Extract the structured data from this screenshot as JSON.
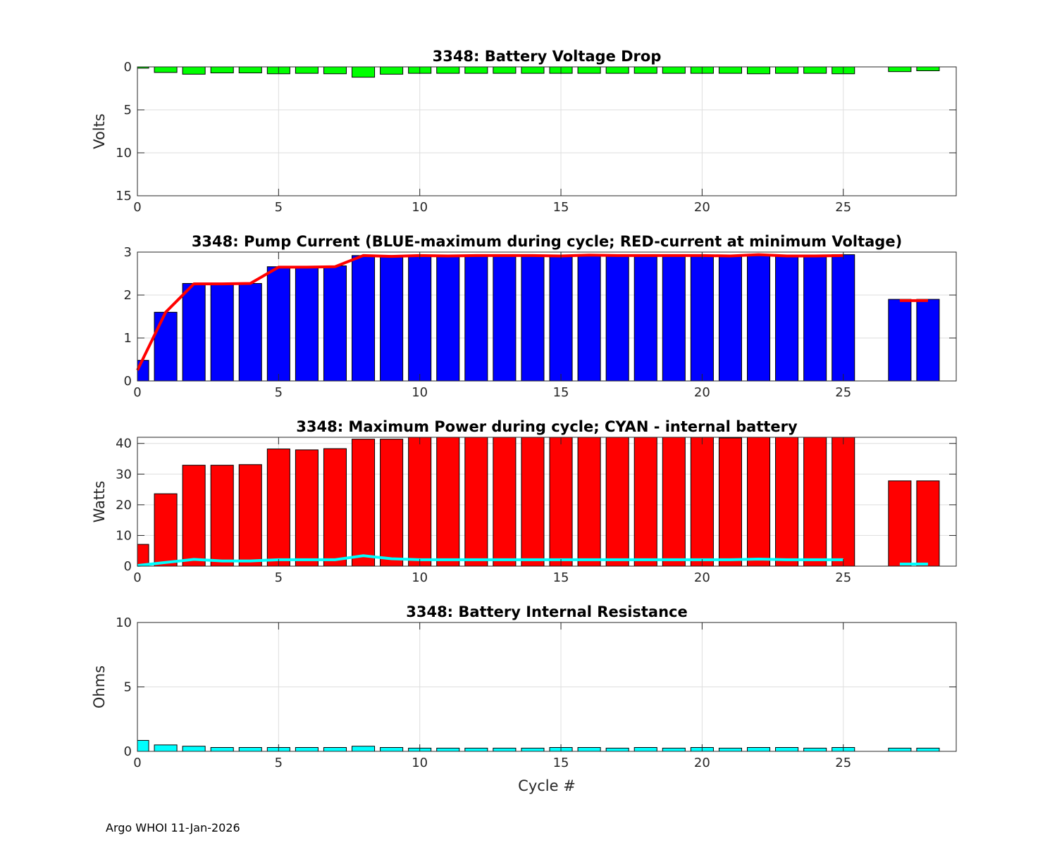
{
  "footer": "Argo WHOI 11-Jan-2026",
  "chart_data": [
    {
      "type": "bar",
      "title": "3348: Battery Voltage Drop",
      "xlabel": "",
      "ylabel": "Volts",
      "ylim": [
        0,
        15
      ],
      "y_reversed": true,
      "yticks": [
        0,
        5,
        10,
        15
      ],
      "xlim": [
        0,
        29
      ],
      "xticks": [
        0,
        5,
        10,
        15,
        20,
        25
      ],
      "grid": true,
      "colors": {
        "bars": "#00ff00"
      },
      "x": [
        0,
        1,
        2,
        3,
        4,
        5,
        6,
        7,
        8,
        9,
        10,
        11,
        12,
        13,
        14,
        15,
        16,
        17,
        18,
        19,
        20,
        21,
        22,
        23,
        24,
        25,
        27,
        28
      ],
      "values": [
        0.15,
        0.65,
        0.85,
        0.7,
        0.7,
        0.8,
        0.75,
        0.8,
        1.2,
        0.85,
        0.75,
        0.75,
        0.75,
        0.75,
        0.75,
        0.75,
        0.75,
        0.75,
        0.75,
        0.75,
        0.75,
        0.75,
        0.8,
        0.75,
        0.75,
        0.8,
        0.55,
        0.45
      ]
    },
    {
      "type": "bar",
      "title": "3348: Pump Current (BLUE-maximum during cycle; RED-current at minimum Voltage)",
      "xlabel": "",
      "ylabel": "",
      "ylim": [
        0,
        3
      ],
      "yticks": [
        0,
        1,
        2,
        3
      ],
      "xlim": [
        0,
        29
      ],
      "xticks": [
        0,
        5,
        10,
        15,
        20,
        25
      ],
      "grid": true,
      "colors": {
        "bars": "#0000ff",
        "line": "#ff0000"
      },
      "x": [
        0,
        1,
        2,
        3,
        4,
        5,
        6,
        7,
        8,
        9,
        10,
        11,
        12,
        13,
        14,
        15,
        16,
        17,
        18,
        19,
        20,
        21,
        22,
        23,
        24,
        25,
        27,
        28
      ],
      "values": [
        0.48,
        1.6,
        2.27,
        2.27,
        2.27,
        2.66,
        2.66,
        2.68,
        2.92,
        2.92,
        2.92,
        2.92,
        2.92,
        2.92,
        2.92,
        2.92,
        2.94,
        2.92,
        2.92,
        2.92,
        2.92,
        2.92,
        2.94,
        2.92,
        2.92,
        2.94,
        1.9,
        1.9
      ],
      "line_x": [
        0,
        1,
        2,
        3,
        4,
        5,
        6,
        7,
        8,
        9,
        10,
        11,
        12,
        13,
        14,
        15,
        16,
        17,
        18,
        19,
        20,
        21,
        22,
        23,
        24,
        25,
        27,
        28
      ],
      "line_values": [
        0.25,
        1.6,
        2.26,
        2.26,
        2.27,
        2.65,
        2.65,
        2.66,
        2.92,
        2.9,
        2.92,
        2.91,
        2.92,
        2.92,
        2.92,
        2.91,
        2.93,
        2.92,
        2.92,
        2.92,
        2.92,
        2.91,
        2.94,
        2.91,
        2.91,
        2.92,
        1.87,
        1.87
      ]
    },
    {
      "type": "bar",
      "title": "3348: Maximum Power during cycle; CYAN - internal battery",
      "xlabel": "",
      "ylabel": "Watts",
      "ylim": [
        0,
        42
      ],
      "yticks": [
        0,
        10,
        20,
        30,
        40
      ],
      "xlim": [
        0,
        29
      ],
      "xticks": [
        0,
        5,
        10,
        15,
        20,
        25
      ],
      "grid": true,
      "colors": {
        "bars": "#ff0000",
        "line": "#00ffff"
      },
      "x": [
        0,
        1,
        2,
        3,
        4,
        5,
        6,
        7,
        8,
        9,
        10,
        11,
        12,
        13,
        14,
        15,
        16,
        17,
        18,
        19,
        20,
        21,
        22,
        23,
        24,
        25,
        27,
        28
      ],
      "values": [
        7.1,
        23.6,
        32.9,
        32.9,
        33.1,
        38.2,
        37.9,
        38.3,
        41.4,
        41.4,
        42,
        42,
        42,
        42,
        42,
        42,
        42,
        42,
        42,
        42,
        42,
        41.8,
        42,
        42,
        42,
        42,
        27.8,
        27.8
      ],
      "line_x": [
        0,
        1,
        2,
        3,
        4,
        5,
        6,
        7,
        8,
        9,
        10,
        11,
        12,
        13,
        14,
        15,
        16,
        17,
        18,
        19,
        20,
        21,
        22,
        23,
        24,
        25,
        27,
        28
      ],
      "line_values": [
        0.2,
        1.2,
        2.2,
        1.7,
        1.7,
        2.1,
        2.1,
        2.1,
        3.4,
        2.4,
        2.1,
        2.1,
        2.1,
        2.1,
        2.1,
        2.1,
        2.1,
        2.1,
        2.1,
        2.1,
        2.1,
        2.1,
        2.3,
        2.1,
        2.1,
        2.1,
        0.7,
        0.7
      ]
    },
    {
      "type": "bar",
      "title": "3348: Battery Internal Resistance",
      "xlabel": "Cycle #",
      "ylabel": "Ohms",
      "ylim": [
        0,
        10
      ],
      "yticks": [
        0,
        5,
        10
      ],
      "xlim": [
        0,
        29
      ],
      "xticks": [
        0,
        5,
        10,
        15,
        20,
        25
      ],
      "grid": true,
      "colors": {
        "bars": "#00ffff"
      },
      "x": [
        0,
        1,
        2,
        3,
        4,
        5,
        6,
        7,
        8,
        9,
        10,
        11,
        12,
        13,
        14,
        15,
        16,
        17,
        18,
        19,
        20,
        21,
        22,
        23,
        24,
        25,
        27,
        28
      ],
      "values": [
        0.85,
        0.5,
        0.4,
        0.3,
        0.3,
        0.3,
        0.3,
        0.3,
        0.4,
        0.3,
        0.25,
        0.25,
        0.25,
        0.25,
        0.25,
        0.3,
        0.3,
        0.25,
        0.3,
        0.25,
        0.3,
        0.25,
        0.3,
        0.3,
        0.25,
        0.3,
        0.25,
        0.25
      ]
    }
  ]
}
